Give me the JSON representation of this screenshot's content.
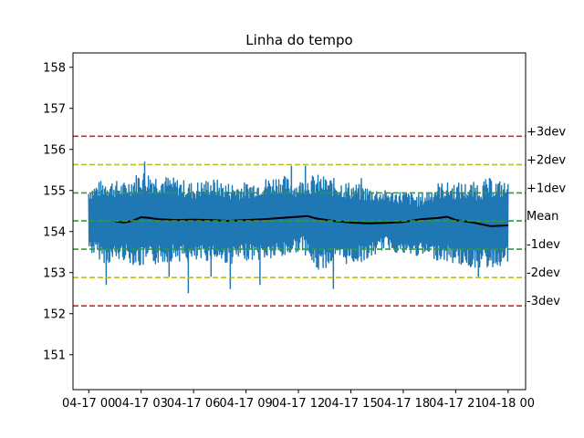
{
  "chart_data": {
    "type": "line",
    "title": "Linha do tempo",
    "xlabel": "",
    "ylabel": "",
    "ylim": [
      150.15,
      158.35
    ],
    "xlim_hours": [
      -0.9,
      25.0
    ],
    "grid": false,
    "x_ticks": [
      {
        "hour": 0,
        "label": "04-17 00"
      },
      {
        "hour": 3,
        "label": "04-17 03"
      },
      {
        "hour": 6,
        "label": "04-17 06"
      },
      {
        "hour": 9,
        "label": "04-17 09"
      },
      {
        "hour": 12,
        "label": "04-17 12"
      },
      {
        "hour": 15,
        "label": "04-17 15"
      },
      {
        "hour": 18,
        "label": "04-17 18"
      },
      {
        "hour": 21,
        "label": "04-17 21"
      },
      {
        "hour": 24,
        "label": "04-18 00"
      }
    ],
    "y_ticks": [
      151,
      152,
      153,
      154,
      155,
      156,
      157,
      158
    ],
    "raw_series": {
      "color": "#1f77b4",
      "x_start_hour": 0.0,
      "x_end_hour": 24.0,
      "band": [
        {
          "hour": 0.0,
          "low": 153.5,
          "high": 155.1
        },
        {
          "hour": 1.0,
          "low": 153.2,
          "high": 155.3
        },
        {
          "hour": 2.0,
          "low": 153.3,
          "high": 155.2
        },
        {
          "hour": 3.0,
          "low": 153.1,
          "high": 155.5
        },
        {
          "hour": 4.0,
          "low": 153.2,
          "high": 155.4
        },
        {
          "hour": 5.0,
          "low": 153.3,
          "high": 155.3
        },
        {
          "hour": 6.0,
          "low": 153.2,
          "high": 155.2
        },
        {
          "hour": 7.0,
          "low": 153.3,
          "high": 155.3
        },
        {
          "hour": 8.0,
          "low": 153.2,
          "high": 155.2
        },
        {
          "hour": 9.0,
          "low": 153.3,
          "high": 155.2
        },
        {
          "hour": 10.0,
          "low": 153.3,
          "high": 155.3
        },
        {
          "hour": 11.0,
          "low": 153.3,
          "high": 155.4
        },
        {
          "hour": 11.9,
          "low": 153.5,
          "high": 155.2
        },
        {
          "hour": 12.3,
          "low": 153.5,
          "high": 155.3
        },
        {
          "hour": 13.0,
          "low": 153.0,
          "high": 155.4
        },
        {
          "hour": 14.0,
          "low": 153.2,
          "high": 155.3
        },
        {
          "hour": 15.0,
          "low": 153.2,
          "high": 155.2
        },
        {
          "hour": 16.0,
          "low": 153.3,
          "high": 155.1
        },
        {
          "hour": 17.0,
          "low": 153.6,
          "high": 155.0
        },
        {
          "hour": 18.0,
          "low": 153.4,
          "high": 155.0
        },
        {
          "hour": 19.0,
          "low": 153.4,
          "high": 154.9
        },
        {
          "hour": 20.0,
          "low": 153.3,
          "high": 155.2
        },
        {
          "hour": 21.0,
          "low": 153.2,
          "high": 155.2
        },
        {
          "hour": 22.0,
          "low": 153.1,
          "high": 155.2
        },
        {
          "hour": 23.0,
          "low": 153.1,
          "high": 155.3
        },
        {
          "hour": 24.0,
          "low": 153.2,
          "high": 155.2
        }
      ],
      "spikes": [
        {
          "hour": 1.0,
          "value": 152.7
        },
        {
          "hour": 4.6,
          "value": 152.9
        },
        {
          "hour": 5.7,
          "value": 152.5
        },
        {
          "hour": 7.0,
          "value": 152.9
        },
        {
          "hour": 8.1,
          "value": 152.6
        },
        {
          "hour": 9.8,
          "value": 152.7
        },
        {
          "hour": 14.0,
          "value": 152.6
        },
        {
          "hour": 3.2,
          "value": 155.7
        },
        {
          "hour": 11.6,
          "value": 155.6
        },
        {
          "hour": 12.4,
          "value": 155.6
        },
        {
          "hour": 15.6,
          "value": 155.3
        },
        {
          "hour": 22.3,
          "value": 152.9
        }
      ]
    },
    "rolling_mean": {
      "color": "#000000",
      "points": [
        {
          "hour": 1.5,
          "value": 154.25
        },
        {
          "hour": 2.0,
          "value": 154.22
        },
        {
          "hour": 2.5,
          "value": 154.26
        },
        {
          "hour": 3.0,
          "value": 154.35
        },
        {
          "hour": 3.5,
          "value": 154.33
        },
        {
          "hour": 4.0,
          "value": 154.3
        },
        {
          "hour": 5.0,
          "value": 154.28
        },
        {
          "hour": 6.0,
          "value": 154.29
        },
        {
          "hour": 7.0,
          "value": 154.28
        },
        {
          "hour": 8.0,
          "value": 154.26
        },
        {
          "hour": 9.0,
          "value": 154.28
        },
        {
          "hour": 10.0,
          "value": 154.3
        },
        {
          "hour": 11.0,
          "value": 154.33
        },
        {
          "hour": 12.0,
          "value": 154.36
        },
        {
          "hour": 12.5,
          "value": 154.38
        },
        {
          "hour": 13.0,
          "value": 154.32
        },
        {
          "hour": 14.0,
          "value": 154.26
        },
        {
          "hour": 15.0,
          "value": 154.22
        },
        {
          "hour": 16.0,
          "value": 154.2
        },
        {
          "hour": 17.0,
          "value": 154.21
        },
        {
          "hour": 18.0,
          "value": 154.23
        },
        {
          "hour": 19.0,
          "value": 154.3
        },
        {
          "hour": 20.0,
          "value": 154.33
        },
        {
          "hour": 20.5,
          "value": 154.36
        },
        {
          "hour": 21.0,
          "value": 154.28
        },
        {
          "hour": 22.0,
          "value": 154.22
        },
        {
          "hour": 23.0,
          "value": 154.13
        },
        {
          "hour": 24.0,
          "value": 154.15
        }
      ]
    },
    "reference_lines": [
      {
        "label": "+3dev",
        "value": 156.32,
        "color": "#d62728"
      },
      {
        "label": "+2dev",
        "value": 155.63,
        "color": "#bcbd22"
      },
      {
        "label": "+1dev",
        "value": 154.94,
        "color": "#2ca02c"
      },
      {
        "label": "Mean",
        "value": 154.26,
        "color": "#2ca02c"
      },
      {
        "label": "-1dev",
        "value": 153.57,
        "color": "#2ca02c"
      },
      {
        "label": "-2dev",
        "value": 152.88,
        "color": "#bcbd22"
      },
      {
        "label": "-3dev",
        "value": 152.19,
        "color": "#d62728"
      }
    ]
  }
}
